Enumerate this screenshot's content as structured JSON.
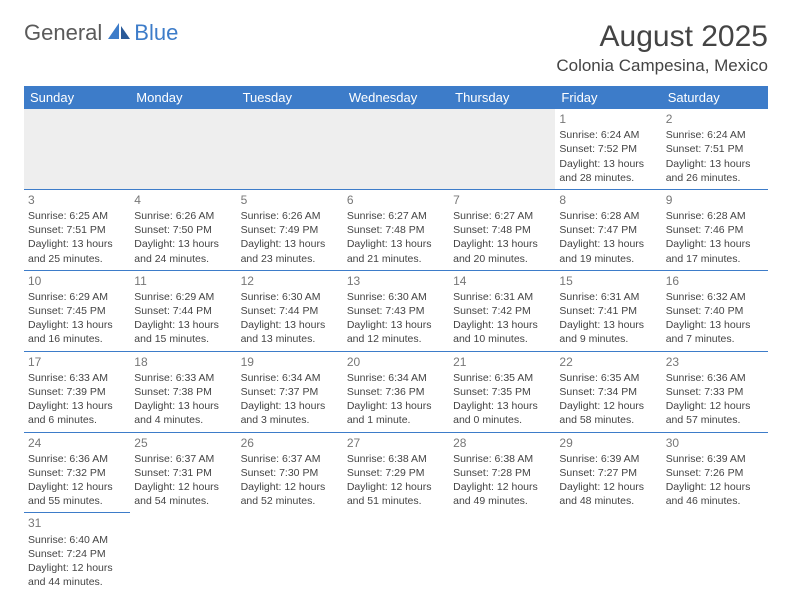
{
  "logo": {
    "part1": "General",
    "part2": "Blue"
  },
  "title": "August 2025",
  "location": "Colonia Campesina, Mexico",
  "colors": {
    "header_bg": "#3d7cc9",
    "header_fg": "#ffffff",
    "border": "#3d7cc9",
    "text": "#444444",
    "daynum": "#777777",
    "empty_bg": "#eeeeee"
  },
  "weekdays": [
    "Sunday",
    "Monday",
    "Tuesday",
    "Wednesday",
    "Thursday",
    "Friday",
    "Saturday"
  ],
  "rows": [
    [
      null,
      null,
      null,
      null,
      null,
      {
        "n": "1",
        "sr": "Sunrise: 6:24 AM",
        "ss": "Sunset: 7:52 PM",
        "dl": "Daylight: 13 hours and 28 minutes."
      },
      {
        "n": "2",
        "sr": "Sunrise: 6:24 AM",
        "ss": "Sunset: 7:51 PM",
        "dl": "Daylight: 13 hours and 26 minutes."
      }
    ],
    [
      {
        "n": "3",
        "sr": "Sunrise: 6:25 AM",
        "ss": "Sunset: 7:51 PM",
        "dl": "Daylight: 13 hours and 25 minutes."
      },
      {
        "n": "4",
        "sr": "Sunrise: 6:26 AM",
        "ss": "Sunset: 7:50 PM",
        "dl": "Daylight: 13 hours and 24 minutes."
      },
      {
        "n": "5",
        "sr": "Sunrise: 6:26 AM",
        "ss": "Sunset: 7:49 PM",
        "dl": "Daylight: 13 hours and 23 minutes."
      },
      {
        "n": "6",
        "sr": "Sunrise: 6:27 AM",
        "ss": "Sunset: 7:48 PM",
        "dl": "Daylight: 13 hours and 21 minutes."
      },
      {
        "n": "7",
        "sr": "Sunrise: 6:27 AM",
        "ss": "Sunset: 7:48 PM",
        "dl": "Daylight: 13 hours and 20 minutes."
      },
      {
        "n": "8",
        "sr": "Sunrise: 6:28 AM",
        "ss": "Sunset: 7:47 PM",
        "dl": "Daylight: 13 hours and 19 minutes."
      },
      {
        "n": "9",
        "sr": "Sunrise: 6:28 AM",
        "ss": "Sunset: 7:46 PM",
        "dl": "Daylight: 13 hours and 17 minutes."
      }
    ],
    [
      {
        "n": "10",
        "sr": "Sunrise: 6:29 AM",
        "ss": "Sunset: 7:45 PM",
        "dl": "Daylight: 13 hours and 16 minutes."
      },
      {
        "n": "11",
        "sr": "Sunrise: 6:29 AM",
        "ss": "Sunset: 7:44 PM",
        "dl": "Daylight: 13 hours and 15 minutes."
      },
      {
        "n": "12",
        "sr": "Sunrise: 6:30 AM",
        "ss": "Sunset: 7:44 PM",
        "dl": "Daylight: 13 hours and 13 minutes."
      },
      {
        "n": "13",
        "sr": "Sunrise: 6:30 AM",
        "ss": "Sunset: 7:43 PM",
        "dl": "Daylight: 13 hours and 12 minutes."
      },
      {
        "n": "14",
        "sr": "Sunrise: 6:31 AM",
        "ss": "Sunset: 7:42 PM",
        "dl": "Daylight: 13 hours and 10 minutes."
      },
      {
        "n": "15",
        "sr": "Sunrise: 6:31 AM",
        "ss": "Sunset: 7:41 PM",
        "dl": "Daylight: 13 hours and 9 minutes."
      },
      {
        "n": "16",
        "sr": "Sunrise: 6:32 AM",
        "ss": "Sunset: 7:40 PM",
        "dl": "Daylight: 13 hours and 7 minutes."
      }
    ],
    [
      {
        "n": "17",
        "sr": "Sunrise: 6:33 AM",
        "ss": "Sunset: 7:39 PM",
        "dl": "Daylight: 13 hours and 6 minutes."
      },
      {
        "n": "18",
        "sr": "Sunrise: 6:33 AM",
        "ss": "Sunset: 7:38 PM",
        "dl": "Daylight: 13 hours and 4 minutes."
      },
      {
        "n": "19",
        "sr": "Sunrise: 6:34 AM",
        "ss": "Sunset: 7:37 PM",
        "dl": "Daylight: 13 hours and 3 minutes."
      },
      {
        "n": "20",
        "sr": "Sunrise: 6:34 AM",
        "ss": "Sunset: 7:36 PM",
        "dl": "Daylight: 13 hours and 1 minute."
      },
      {
        "n": "21",
        "sr": "Sunrise: 6:35 AM",
        "ss": "Sunset: 7:35 PM",
        "dl": "Daylight: 13 hours and 0 minutes."
      },
      {
        "n": "22",
        "sr": "Sunrise: 6:35 AM",
        "ss": "Sunset: 7:34 PM",
        "dl": "Daylight: 12 hours and 58 minutes."
      },
      {
        "n": "23",
        "sr": "Sunrise: 6:36 AM",
        "ss": "Sunset: 7:33 PM",
        "dl": "Daylight: 12 hours and 57 minutes."
      }
    ],
    [
      {
        "n": "24",
        "sr": "Sunrise: 6:36 AM",
        "ss": "Sunset: 7:32 PM",
        "dl": "Daylight: 12 hours and 55 minutes."
      },
      {
        "n": "25",
        "sr": "Sunrise: 6:37 AM",
        "ss": "Sunset: 7:31 PM",
        "dl": "Daylight: 12 hours and 54 minutes."
      },
      {
        "n": "26",
        "sr": "Sunrise: 6:37 AM",
        "ss": "Sunset: 7:30 PM",
        "dl": "Daylight: 12 hours and 52 minutes."
      },
      {
        "n": "27",
        "sr": "Sunrise: 6:38 AM",
        "ss": "Sunset: 7:29 PM",
        "dl": "Daylight: 12 hours and 51 minutes."
      },
      {
        "n": "28",
        "sr": "Sunrise: 6:38 AM",
        "ss": "Sunset: 7:28 PM",
        "dl": "Daylight: 12 hours and 49 minutes."
      },
      {
        "n": "29",
        "sr": "Sunrise: 6:39 AM",
        "ss": "Sunset: 7:27 PM",
        "dl": "Daylight: 12 hours and 48 minutes."
      },
      {
        "n": "30",
        "sr": "Sunrise: 6:39 AM",
        "ss": "Sunset: 7:26 PM",
        "dl": "Daylight: 12 hours and 46 minutes."
      }
    ],
    [
      {
        "n": "31",
        "sr": "Sunrise: 6:40 AM",
        "ss": "Sunset: 7:24 PM",
        "dl": "Daylight: 12 hours and 44 minutes."
      },
      null,
      null,
      null,
      null,
      null,
      null
    ]
  ]
}
